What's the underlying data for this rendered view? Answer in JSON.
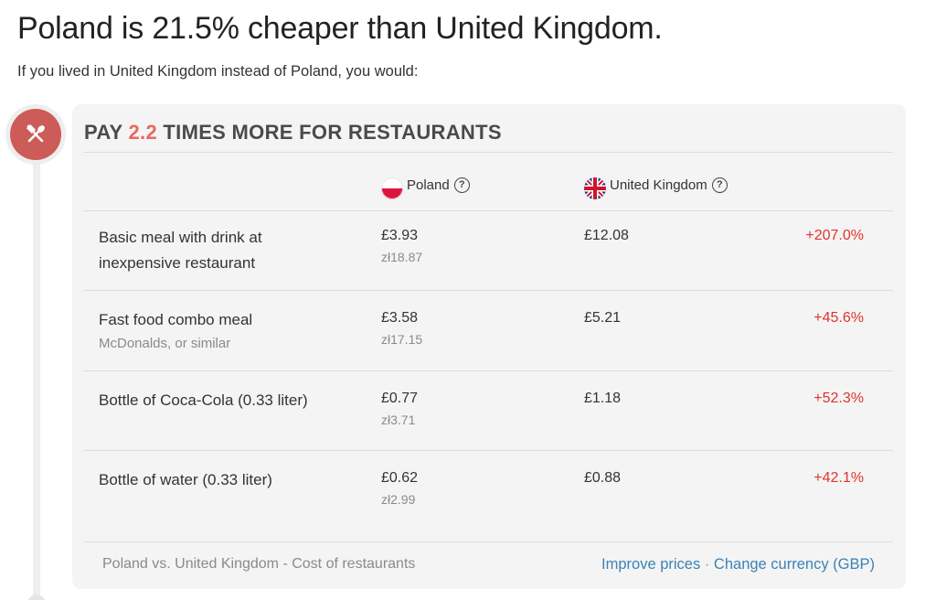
{
  "headline": "Poland is 21.5% cheaper than United Kingdom.",
  "subline": "If you lived in United Kingdom instead of Poland, you would:",
  "category": {
    "icon": "fork-knife-icon",
    "title_prefix": "PAY",
    "title_multiplier": "2.2",
    "title_suffix": "TIMES MORE FOR RESTAURANTS",
    "accent_color": "#e8685f",
    "circle_color": "#cc5c58"
  },
  "columns": {
    "poland": {
      "label": "Poland",
      "flag": "poland-flag-icon",
      "help": "?"
    },
    "uk": {
      "label": "United Kingdom",
      "flag": "uk-flag-icon",
      "help": "?"
    }
  },
  "rows": [
    {
      "name": "Basic meal with drink at inexpensive restaurant",
      "sub": "",
      "pl_gbp": "£3.93",
      "pl_local": "zł18.87",
      "uk_gbp": "£12.08",
      "diff": "+207.0%"
    },
    {
      "name": "Fast food combo meal",
      "sub": "McDonalds, or similar",
      "pl_gbp": "£3.58",
      "pl_local": "zł17.15",
      "uk_gbp": "£5.21",
      "diff": "+45.6%"
    },
    {
      "name": "Bottle of Coca-Cola (0.33 liter)",
      "sub": "",
      "pl_gbp": "£0.77",
      "pl_local": "zł3.71",
      "uk_gbp": "£1.18",
      "diff": "+52.3%"
    },
    {
      "name": "Bottle of water (0.33 liter)",
      "sub": "",
      "pl_gbp": "£0.62",
      "pl_local": "zł2.99",
      "uk_gbp": "£0.88",
      "diff": "+42.1%"
    }
  ],
  "footer": {
    "caption": "Poland vs. United Kingdom - Cost of restaurants",
    "improve_prices": "Improve prices",
    "separator": "·",
    "change_currency": "Change currency (GBP)"
  }
}
